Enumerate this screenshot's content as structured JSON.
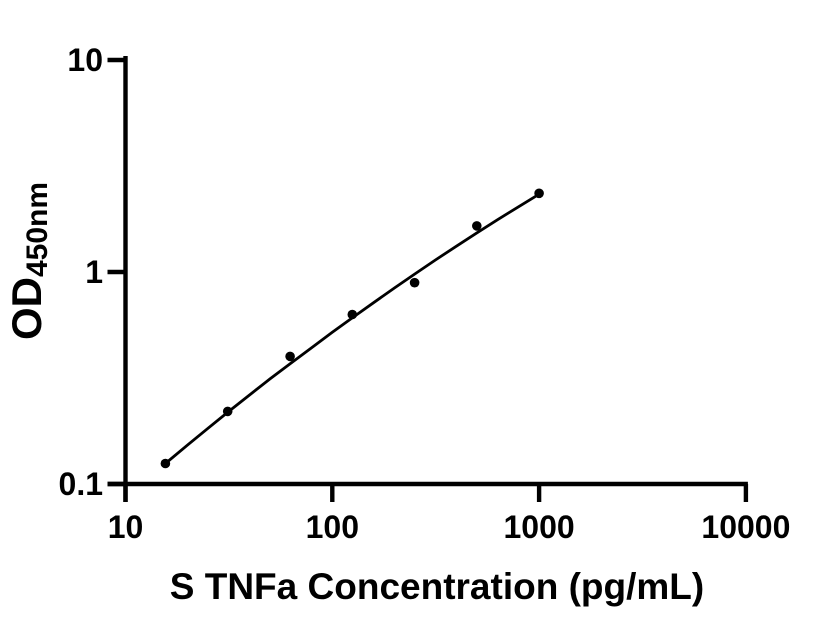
{
  "chart_data": {
    "type": "scatter",
    "title": "",
    "xlabel": "S TNFa Concentration (pg/mL)",
    "ylabel": "OD",
    "ylabel_subscript": "450nm",
    "xscale": "log",
    "yscale": "log",
    "xlim": [
      10,
      10000
    ],
    "ylim": [
      0.1,
      10
    ],
    "x_tick_labels": [
      "10",
      "100",
      "1000",
      "10000"
    ],
    "x_tick_values": [
      10,
      100,
      1000,
      10000
    ],
    "y_tick_labels": [
      "10",
      "1",
      "0.1"
    ],
    "y_tick_values": [
      10,
      1,
      0.1
    ],
    "grid": false,
    "legend": "none",
    "series": [
      {
        "name": "standard-curve-points",
        "marker": "filled-circle",
        "x": [
          15.6,
          31.2,
          62.5,
          125,
          250,
          500,
          1000
        ],
        "y": [
          0.125,
          0.22,
          0.4,
          0.63,
          0.89,
          1.65,
          2.35
        ]
      }
    ],
    "fit_curve": {
      "name": "fitted-standard-curve",
      "x": [
        15.6,
        20,
        25,
        31.6,
        40,
        50,
        63,
        80,
        100,
        126,
        158,
        200,
        250,
        316,
        400,
        500,
        630,
        800,
        1000
      ],
      "y": [
        0.125,
        0.153,
        0.183,
        0.22,
        0.264,
        0.313,
        0.371,
        0.442,
        0.52,
        0.612,
        0.716,
        0.841,
        0.977,
        1.14,
        1.328,
        1.529,
        1.764,
        2.04,
        2.329
      ]
    },
    "colors": {
      "points": "#000000",
      "line": "#000000",
      "axis": "#000000",
      "tick_text": "#000000",
      "background": "#ffffff"
    }
  }
}
